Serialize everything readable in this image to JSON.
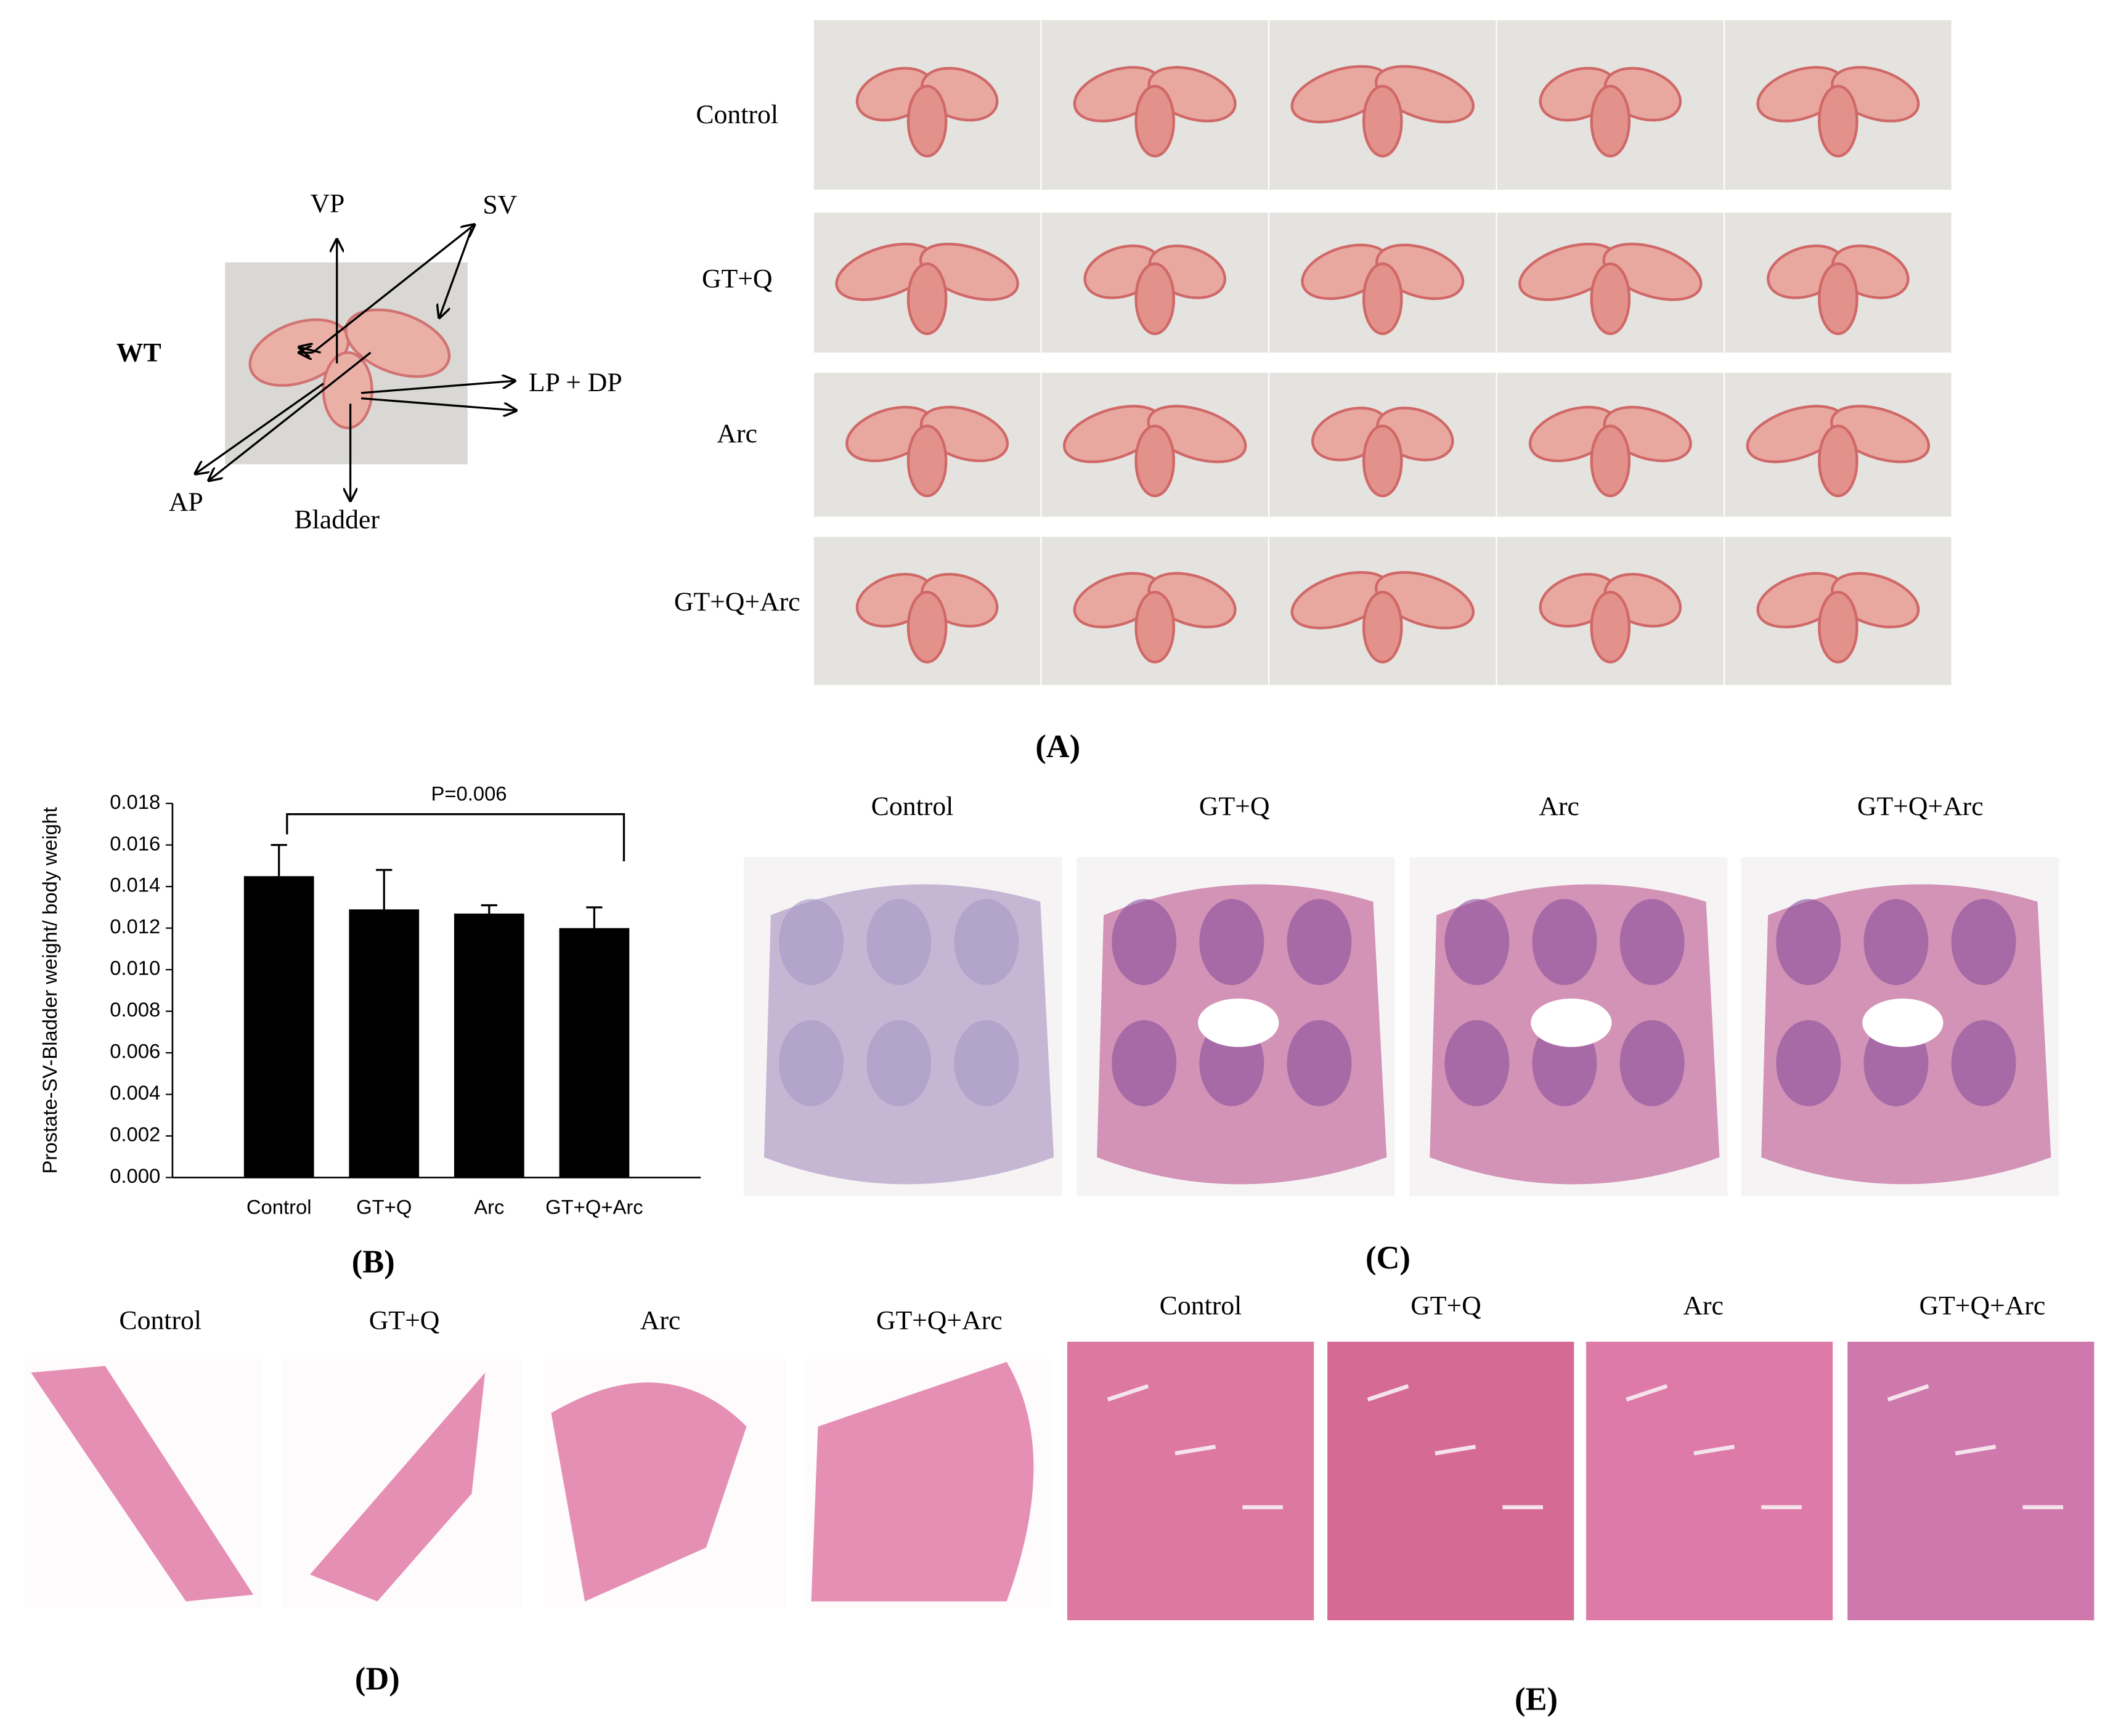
{
  "panel_a": {
    "wt_label": "WT",
    "annotations": [
      "VP",
      "SV",
      "LP + DP",
      "AP",
      "Bladder"
    ],
    "rows": [
      "Control",
      "GT+Q",
      "Arc",
      "GT+Q+Arc"
    ],
    "caption": "(A)"
  },
  "chart_data": {
    "type": "bar",
    "ylabel": "Prostate-SV-Bladder weight/ body weight",
    "categories": [
      "Control",
      "GT+Q",
      "Arc",
      "GT+Q+Arc"
    ],
    "values": [
      0.0145,
      0.0129,
      0.0127,
      0.012
    ],
    "errors": [
      0.0015,
      0.0019,
      0.0004,
      0.001
    ],
    "color": "#000000",
    "ylim": [
      0,
      0.018
    ],
    "yticks": [
      {
        "value": 0,
        "label": "0.000"
      },
      {
        "value": 0.002,
        "label": "0.002"
      },
      {
        "value": 0.004,
        "label": "0.004"
      },
      {
        "value": 0.006,
        "label": "0.006"
      },
      {
        "value": 0.008,
        "label": "0.008"
      },
      {
        "value": 0.01,
        "label": "0.010"
      },
      {
        "value": 0.012,
        "label": "0.012"
      },
      {
        "value": 0.014,
        "label": "0.014"
      },
      {
        "value": 0.016,
        "label": "0.016"
      },
      {
        "value": 0.018,
        "label": "0.018"
      }
    ],
    "annotation": "P=0.006",
    "caption": "(B)"
  },
  "panel_c": {
    "labels": [
      "Control",
      "GT+Q",
      "Arc",
      "GT+Q+Arc"
    ],
    "caption": "(C)"
  },
  "panel_d": {
    "labels": [
      "Control",
      "GT+Q",
      "Arc",
      "GT+Q+Arc"
    ],
    "caption": "(D)"
  },
  "panel_e": {
    "labels": [
      "Control",
      "GT+Q",
      "Arc",
      "GT+Q+Arc"
    ],
    "caption": "(E)"
  }
}
